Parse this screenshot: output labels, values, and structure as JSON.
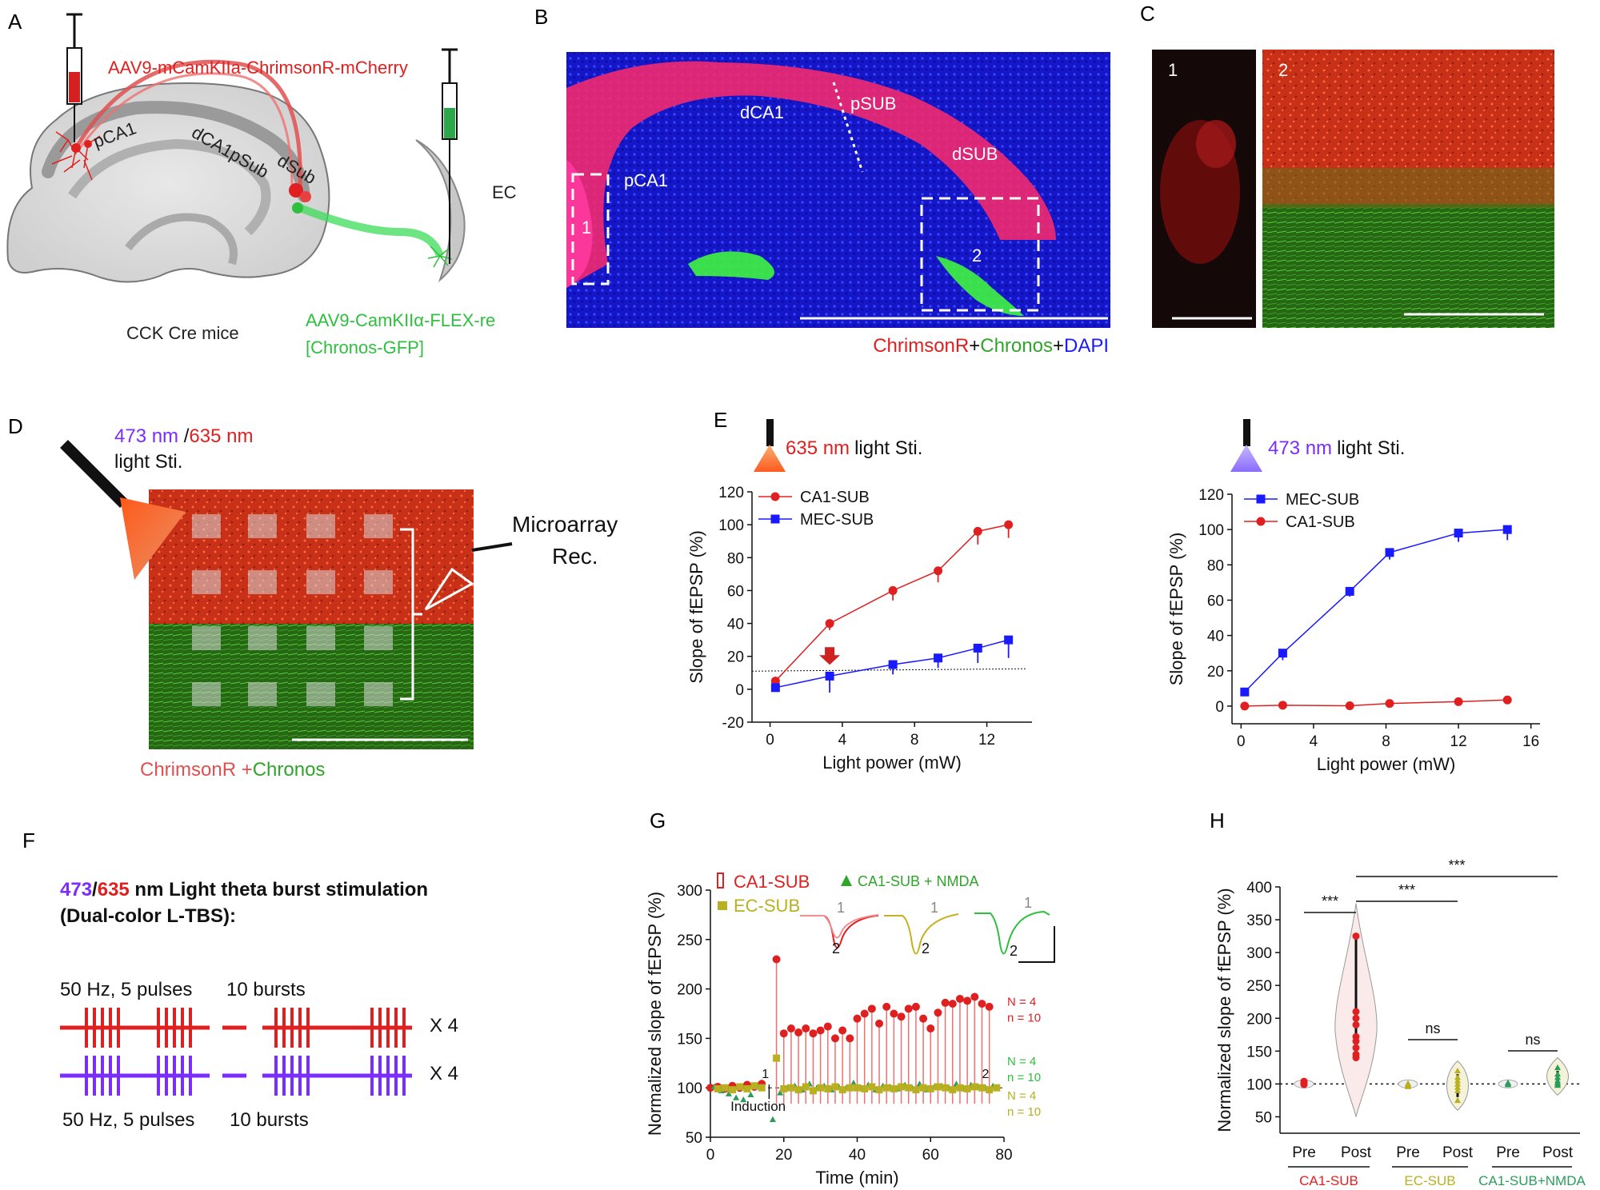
{
  "panel_letters": {
    "A": "A",
    "B": "B",
    "C": "C",
    "D": "D",
    "E": "E",
    "F": "F",
    "G": "G",
    "H": "H"
  },
  "colors": {
    "red": "#e02020",
    "green": "#2fbf3f",
    "blue": "#1a1aff",
    "purple": "#7b2cff",
    "olive": "#b8b020",
    "teal": "#2a9d5a"
  },
  "panel_A": {
    "virus_red": "AAV9-mCamKIIa-ChrimsonR-mCherry",
    "virus_green_1": "AAV9-CamKIIα-FLEX-re",
    "virus_green_2": "[Chronos-GFP]",
    "region_pca1": "pCA1",
    "region_dca1psub": "dCA1pSub",
    "region_dsub": "dSub",
    "region_ec": "EC",
    "mouse": "CCK Cre mice"
  },
  "panel_B": {
    "labels": {
      "dca1": "dCA1",
      "psub": "pSUB",
      "dsub": "dSUB",
      "pca1": "pCA1",
      "box1": "1",
      "box2": "2"
    },
    "legend": {
      "part1": "ChrimsonR",
      "plus1": "+",
      "part2": "Chronos",
      "plus2": "+",
      "part3": "DAPI"
    }
  },
  "panel_C": {
    "label1": "1",
    "label2": "2"
  },
  "panel_D": {
    "wl_blue": "473 nm",
    "wl_sep": " /",
    "wl_red": "635 nm",
    "light": "light Sti.",
    "rec_1": "Microarray",
    "rec_2": "Rec.",
    "legend_red": "ChrimsonR +",
    "legend_green": "Chronos"
  },
  "chart_data": [
    {
      "id": "E-left",
      "type": "line",
      "title_wl": "635 nm",
      "title_rest": "light Sti.",
      "xlabel": "Light power (mW)",
      "ylabel": "Slope of fEPSP (%)",
      "xlim": [
        -1,
        14.5
      ],
      "ylim": [
        -20,
        120
      ],
      "xticks": [
        0,
        4,
        8,
        12
      ],
      "yticks": [
        -20,
        0,
        20,
        40,
        60,
        80,
        100,
        120
      ],
      "reference_line_y": 11,
      "arrow_x": 3.3,
      "series": [
        {
          "name": "CA1-SUB",
          "color": "#e02020",
          "marker": "circle",
          "x": [
            0.3,
            3.3,
            6.8,
            9.3,
            11.5,
            13.2
          ],
          "y": [
            5,
            40,
            60,
            72,
            96,
            100
          ],
          "err": [
            3,
            4,
            6,
            7,
            8,
            8
          ]
        },
        {
          "name": "MEC-SUB",
          "color": "#1a1aff",
          "marker": "square",
          "x": [
            0.3,
            3.3,
            6.8,
            9.3,
            11.5,
            13.2
          ],
          "y": [
            1,
            8,
            15,
            19,
            25,
            30
          ],
          "err": [
            2,
            10,
            6,
            6,
            9,
            11
          ]
        }
      ]
    },
    {
      "id": "E-right",
      "type": "line",
      "title_wl": "473 nm",
      "title_rest": "light Sti.",
      "xlabel": "Light power (mW)",
      "ylabel": "Slope of fEPSP (%)",
      "xlim": [
        -0.5,
        16.5
      ],
      "ylim": [
        -10,
        120
      ],
      "xticks": [
        0,
        4,
        8,
        12,
        16
      ],
      "yticks": [
        0,
        20,
        40,
        60,
        80,
        100,
        120
      ],
      "series": [
        {
          "name": "MEC-SUB",
          "color": "#1a1aff",
          "marker": "square",
          "x": [
            0.2,
            2.3,
            6.0,
            8.2,
            12.0,
            14.7
          ],
          "y": [
            8,
            30,
            65,
            87,
            98,
            100
          ],
          "err": [
            0,
            4,
            3,
            4,
            5,
            6
          ]
        },
        {
          "name": "CA1-SUB",
          "color": "#e02020",
          "marker": "circle",
          "x": [
            0.2,
            2.3,
            6.0,
            8.2,
            12.0,
            14.7
          ],
          "y": [
            0,
            0.5,
            0.2,
            1.5,
            2.5,
            3.5
          ],
          "err": [
            0,
            0,
            0,
            0,
            0,
            0
          ]
        }
      ]
    },
    {
      "id": "G",
      "type": "scatter",
      "xlabel": "Time (min)",
      "ylabel": "Normalized slope of fEPSP (%)",
      "xlim": [
        0,
        80
      ],
      "ylim": [
        50,
        300
      ],
      "xticks": [
        0,
        20,
        40,
        60,
        80
      ],
      "yticks": [
        50,
        100,
        150,
        200,
        250,
        300
      ],
      "baseline_y": 100,
      "annotations": {
        "induction": "Induction",
        "t1": "1",
        "t2": "2",
        "trace1": "1",
        "trace2": "2"
      },
      "n_labels": [
        {
          "line1": "N = 4",
          "line2": "n = 10",
          "color": "#e02020",
          "y": 183
        },
        {
          "line1": "N = 4",
          "line2": "n = 10",
          "color": "#2fbf3f",
          "y": 123
        },
        {
          "line1": "N = 4",
          "line2": "n = 10",
          "color": "#b8b020",
          "y": 88
        }
      ],
      "series": [
        {
          "name": "CA1-SUB",
          "color": "#e02020",
          "marker": "circle",
          "x": [
            0,
            2,
            4,
            6,
            8,
            10,
            12,
            14,
            18,
            20,
            22,
            24,
            26,
            28,
            30,
            32,
            34,
            36,
            38,
            40,
            42,
            44,
            46,
            48,
            50,
            52,
            54,
            56,
            58,
            60,
            62,
            64,
            66,
            68,
            70,
            72,
            74,
            76
          ],
          "y": [
            100,
            101,
            99,
            102,
            100,
            103,
            101,
            104,
            230,
            155,
            160,
            156,
            160,
            155,
            158,
            162,
            150,
            158,
            150,
            170,
            175,
            180,
            165,
            182,
            175,
            172,
            180,
            182,
            170,
            160,
            176,
            186,
            185,
            190,
            188,
            192,
            185,
            182
          ]
        },
        {
          "name": "CA1-SUB + NMDA",
          "color": "#2a9d5a",
          "marker": "triangle",
          "x": [
            1,
            3,
            5,
            7,
            9,
            11,
            13,
            17,
            19,
            21,
            23,
            25,
            27,
            29,
            31,
            33,
            35,
            37,
            39,
            41,
            43,
            45,
            47,
            49,
            51,
            53,
            55,
            57,
            59,
            61,
            63,
            65,
            67,
            69,
            71,
            73,
            75,
            77
          ],
          "y": [
            101,
            97,
            94,
            90,
            88,
            93,
            101,
            68,
            95,
            100,
            102,
            98,
            104,
            100,
            102,
            98,
            101,
            100,
            105,
            100,
            103,
            98,
            102,
            101,
            99,
            103,
            100,
            104,
            98,
            101,
            102,
            100,
            104,
            99,
            103,
            101,
            100,
            102
          ]
        },
        {
          "name": "EC-SUB",
          "color": "#b8b020",
          "marker": "square",
          "x": [
            2,
            4,
            6,
            8,
            10,
            12,
            14,
            18,
            20,
            22,
            24,
            26,
            28,
            30,
            32,
            34,
            36,
            38,
            40,
            42,
            44,
            46,
            48,
            50,
            52,
            54,
            56,
            58,
            60,
            62,
            64,
            66,
            68,
            70,
            72,
            74,
            76,
            78
          ],
          "y": [
            99,
            100,
            98,
            101,
            99,
            102,
            100,
            130,
            99,
            100,
            98,
            101,
            97,
            100,
            99,
            101,
            98,
            100,
            100,
            99,
            101,
            98,
            100,
            99,
            101,
            100,
            98,
            100,
            99,
            101,
            100,
            98,
            100,
            99,
            101,
            100,
            98,
            100
          ]
        }
      ]
    },
    {
      "id": "H",
      "type": "violin",
      "ylabel": "Normalized slope of fEPSP (%)",
      "ylim": [
        25,
        400
      ],
      "yticks": [
        50,
        100,
        150,
        200,
        250,
        300,
        350,
        400
      ],
      "baseline_y": 100,
      "categories": [
        "Pre",
        "Post",
        "Pre",
        "Post",
        "Pre",
        "Post"
      ],
      "groups": [
        {
          "name": "CA1-SUB",
          "color": "#e02020"
        },
        {
          "name": "EC-SUB",
          "color": "#b8b020"
        },
        {
          "name": "CA1-SUB+NMDA",
          "color": "#2a9d5a"
        }
      ],
      "points": [
        [
          99,
          101,
          103,
          102,
          100,
          104
        ],
        [
          325,
          210,
          200,
          190,
          172,
          165,
          155,
          145,
          140
        ],
        [
          96,
          98,
          100,
          99,
          101,
          97
        ],
        [
          120,
          110,
          105,
          100,
          95,
          90,
          75
        ],
        [
          100,
          101,
          99,
          102
        ],
        [
          125,
          115,
          110,
          105,
          102,
          100,
          98
        ]
      ],
      "significance": [
        {
          "text": "***"
        },
        {
          "text": "***"
        },
        {
          "text": "***"
        },
        {
          "text": "ns"
        },
        {
          "text": "ns"
        }
      ]
    }
  ],
  "panel_F": {
    "title_blue": "473",
    "title_sep": "/",
    "title_red": "635",
    "title_rest": " nm Light theta burst stimulation",
    "title_line2": "(Dual-color L-TBS):",
    "top_freq": "50 Hz, 5 pulses",
    "top_bursts": "10 bursts",
    "bottom_freq": "50 Hz, 5 pulses",
    "bottom_bursts": "10 bursts",
    "repeat_top": "X 4",
    "repeat_bottom": "X 4"
  },
  "panel_G_legend": {
    "ca1": "CA1-SUB",
    "nmda": "CA1-SUB + NMDA",
    "ec": "EC-SUB"
  }
}
